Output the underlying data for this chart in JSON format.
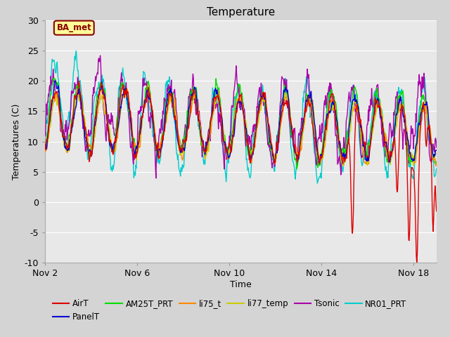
{
  "title": "Temperature",
  "xlabel": "Time",
  "ylabel": "Temperatures (C)",
  "ylim": [
    -10,
    30
  ],
  "xlim": [
    0,
    17
  ],
  "fig_bg": "#d4d4d4",
  "plot_bg": "#e8e8e8",
  "series": {
    "AirT": {
      "color": "#dd0000",
      "lw": 1.0
    },
    "PanelT": {
      "color": "#0000cc",
      "lw": 1.0
    },
    "AM25T_PRT": {
      "color": "#00dd00",
      "lw": 1.0
    },
    "li75_t": {
      "color": "#ff8800",
      "lw": 1.0
    },
    "li77_temp": {
      "color": "#cccc00",
      "lw": 1.0
    },
    "Tsonic": {
      "color": "#aa00aa",
      "lw": 1.0
    },
    "NR01_PRT": {
      "color": "#00cccc",
      "lw": 1.0
    }
  },
  "xtick_positions": [
    0,
    4,
    8,
    12,
    16
  ],
  "xtick_labels": [
    "Nov 2",
    "Nov 6",
    "Nov 10",
    "Nov 14",
    "Nov 18"
  ],
  "ytick_positions": [
    -10,
    -5,
    0,
    5,
    10,
    15,
    20,
    25,
    30
  ],
  "annotation_text": "BA_met",
  "grid_color": "#ffffff",
  "grid_lw": 0.8
}
